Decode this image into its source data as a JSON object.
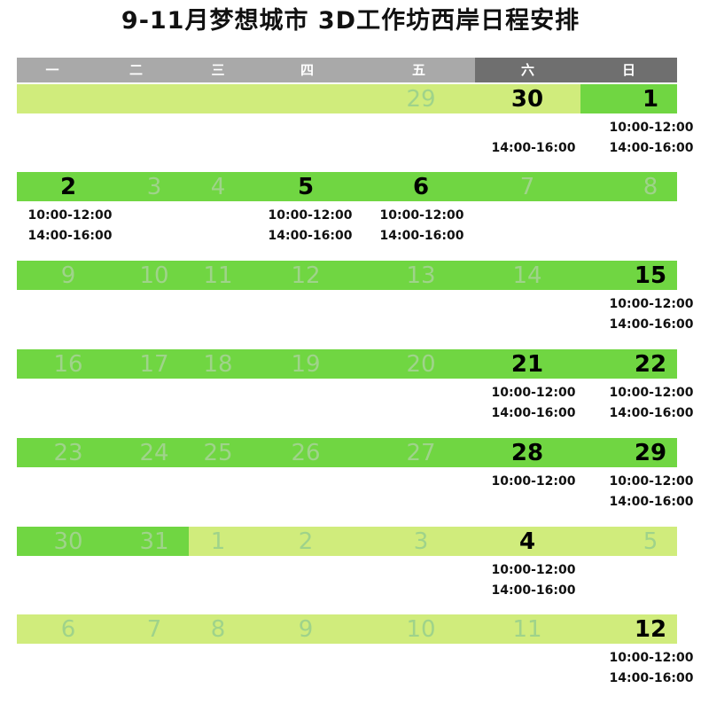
{
  "title": "9-11月梦想城市 3D工作坊西岸日程安排",
  "colors": {
    "green": "#70d642",
    "light_green": "#d0ec7c",
    "header_light": "#a9a9a9",
    "header_dark": "#6f6f6f"
  },
  "weekdays": [
    "一",
    "二",
    "三",
    "四",
    "五",
    "六",
    "日"
  ],
  "weeks": [
    {
      "segments": [
        {
          "from": 0,
          "to": 4,
          "tone": "light"
        },
        {
          "from": 5,
          "to": 5,
          "tone": "light"
        },
        {
          "from": 6,
          "to": 6,
          "tone": "green"
        }
      ],
      "days": [
        {
          "col": 4,
          "num": "29",
          "active": false
        },
        {
          "col": 5,
          "num": "30",
          "active": true,
          "times": [
            "14:00-16:00"
          ],
          "offset": 1
        },
        {
          "col": 6,
          "num": "1",
          "active": true,
          "times": [
            "10:00-12:00",
            "14:00-16:00"
          ]
        }
      ]
    },
    {
      "segments": [
        {
          "from": 0,
          "to": 6,
          "tone": "green"
        }
      ],
      "days": [
        {
          "col": 0,
          "num": "2",
          "active": true,
          "times": [
            "10:00-12:00",
            "14:00-16:00"
          ]
        },
        {
          "col": 1,
          "num": "3",
          "active": false
        },
        {
          "col": 2,
          "num": "4",
          "active": false
        },
        {
          "col": 3,
          "num": "5",
          "active": true,
          "times": [
            "10:00-12:00",
            "14:00-16:00"
          ]
        },
        {
          "col": 4,
          "num": "6",
          "active": true,
          "times": [
            "10:00-12:00",
            "14:00-16:00"
          ]
        },
        {
          "col": 5,
          "num": "7",
          "active": false
        },
        {
          "col": 6,
          "num": "8",
          "active": false
        }
      ]
    },
    {
      "segments": [
        {
          "from": 0,
          "to": 6,
          "tone": "green"
        }
      ],
      "days": [
        {
          "col": 0,
          "num": "9",
          "active": false
        },
        {
          "col": 1,
          "num": "10",
          "active": false
        },
        {
          "col": 2,
          "num": "11",
          "active": false
        },
        {
          "col": 3,
          "num": "12",
          "active": false
        },
        {
          "col": 4,
          "num": "13",
          "active": false
        },
        {
          "col": 5,
          "num": "14",
          "active": false
        },
        {
          "col": 6,
          "num": "15",
          "active": true,
          "times": [
            "10:00-12:00",
            "14:00-16:00"
          ]
        }
      ]
    },
    {
      "segments": [
        {
          "from": 0,
          "to": 6,
          "tone": "green"
        }
      ],
      "days": [
        {
          "col": 0,
          "num": "16",
          "active": false
        },
        {
          "col": 1,
          "num": "17",
          "active": false
        },
        {
          "col": 2,
          "num": "18",
          "active": false
        },
        {
          "col": 3,
          "num": "19",
          "active": false
        },
        {
          "col": 4,
          "num": "20",
          "active": false
        },
        {
          "col": 5,
          "num": "21",
          "active": true,
          "times": [
            "10:00-12:00",
            "14:00-16:00"
          ]
        },
        {
          "col": 6,
          "num": "22",
          "active": true,
          "times": [
            "10:00-12:00",
            "14:00-16:00"
          ]
        }
      ]
    },
    {
      "segments": [
        {
          "from": 0,
          "to": 6,
          "tone": "green"
        }
      ],
      "days": [
        {
          "col": 0,
          "num": "23",
          "active": false
        },
        {
          "col": 1,
          "num": "24",
          "active": false
        },
        {
          "col": 2,
          "num": "25",
          "active": false
        },
        {
          "col": 3,
          "num": "26",
          "active": false
        },
        {
          "col": 4,
          "num": "27",
          "active": false
        },
        {
          "col": 5,
          "num": "28",
          "active": true,
          "times": [
            "10:00-12:00"
          ]
        },
        {
          "col": 6,
          "num": "29",
          "active": true,
          "times": [
            "10:00-12:00",
            "14:00-16:00"
          ]
        }
      ]
    },
    {
      "segments": [
        {
          "from": 0,
          "to": 1,
          "tone": "green"
        },
        {
          "from": 2,
          "to": 6,
          "tone": "light"
        }
      ],
      "days": [
        {
          "col": 0,
          "num": "30",
          "active": false
        },
        {
          "col": 1,
          "num": "31",
          "active": false
        },
        {
          "col": 2,
          "num": "1",
          "active": false
        },
        {
          "col": 3,
          "num": "2",
          "active": false
        },
        {
          "col": 4,
          "num": "3",
          "active": false
        },
        {
          "col": 5,
          "num": "4",
          "active": true,
          "times": [
            "10:00-12:00",
            "14:00-16:00"
          ]
        },
        {
          "col": 6,
          "num": "5",
          "active": false
        }
      ]
    },
    {
      "segments": [
        {
          "from": 0,
          "to": 6,
          "tone": "light"
        }
      ],
      "days": [
        {
          "col": 0,
          "num": "6",
          "active": false
        },
        {
          "col": 1,
          "num": "7",
          "active": false
        },
        {
          "col": 2,
          "num": "8",
          "active": false
        },
        {
          "col": 3,
          "num": "9",
          "active": false
        },
        {
          "col": 4,
          "num": "10",
          "active": false
        },
        {
          "col": 5,
          "num": "11",
          "active": false
        },
        {
          "col": 6,
          "num": "12",
          "active": true,
          "times": [
            "10:00-12:00",
            "14:00-16:00"
          ]
        }
      ]
    }
  ]
}
